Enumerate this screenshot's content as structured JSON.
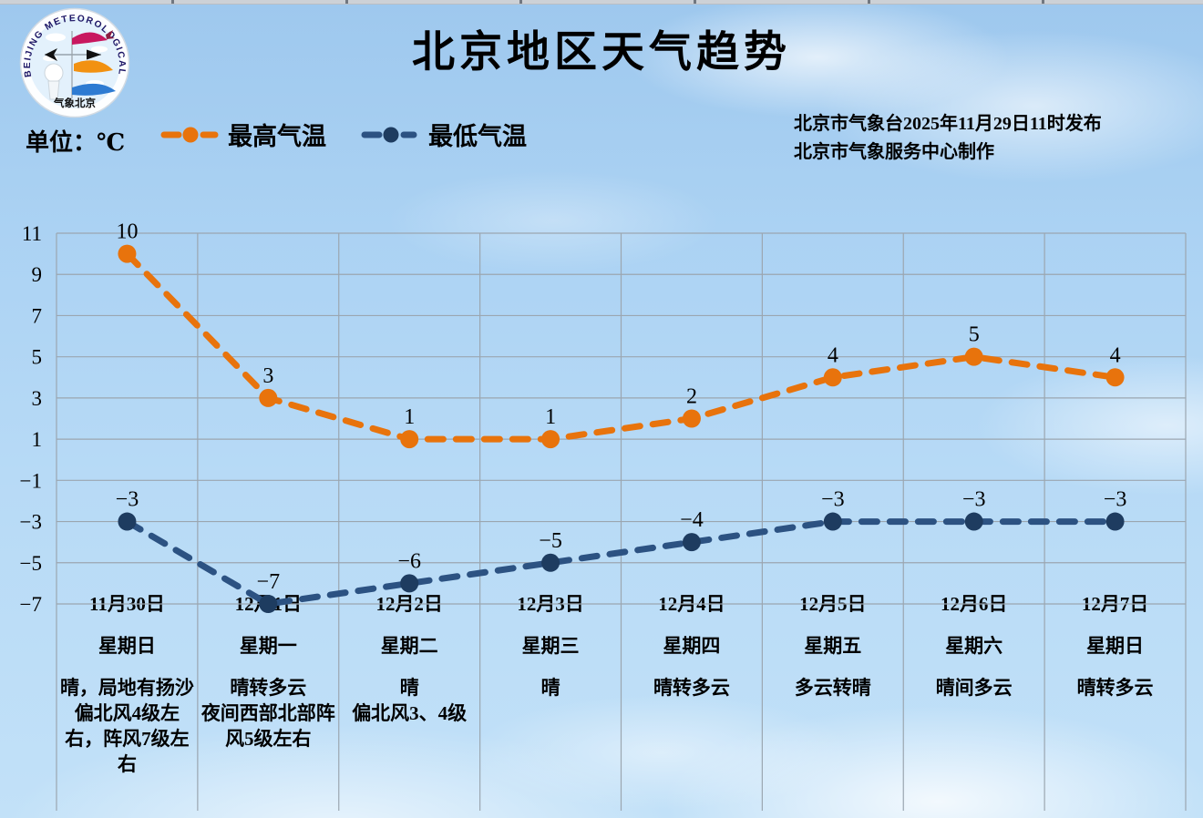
{
  "page": {
    "title": "北京地区天气趋势",
    "unit_label": "单位：℃",
    "issuer_line1": "北京市气象台2025年11月29日11时发布",
    "issuer_line2": "北京市气象服务中心制作"
  },
  "logo": {
    "ring_text": "BEIJING METEOROLOGICAL SERVICE",
    "bottom_text": "气象北京"
  },
  "legend": [
    {
      "label": "最高气温",
      "color": "#e8730c"
    },
    {
      "label": "最低气温",
      "color": "#2c5282"
    }
  ],
  "colors": {
    "grid": "#9ba6b0",
    "high_line": "#e8730c",
    "high_marker": "#e8730c",
    "low_line": "#2c5282",
    "low_marker": "#1e3c60",
    "label_text": "#000000"
  },
  "chart_data": {
    "type": "line",
    "title": "北京地区天气趋势",
    "x": [
      "11月30日",
      "12月1日",
      "12月2日",
      "12月3日",
      "12月4日",
      "12月5日",
      "12月6日",
      "12月7日"
    ],
    "series": [
      {
        "name": "最高气温",
        "values": [
          10,
          3,
          1,
          1,
          2,
          4,
          5,
          4
        ],
        "labels": [
          "10",
          "3",
          "1",
          "1",
          "2",
          "4",
          "5",
          "4"
        ],
        "color": "#e8730c",
        "marker_color": "#e8730c",
        "style": "dashed"
      },
      {
        "name": "最低气温",
        "values": [
          -3,
          -7,
          -6,
          -5,
          -4,
          -3,
          -3,
          -3
        ],
        "labels": [
          "−3",
          "−7",
          "−6",
          "−5",
          "−4",
          "−3",
          "−3",
          "−3"
        ],
        "color": "#2c5282",
        "marker_color": "#1e3c60",
        "style": "dashed"
      }
    ],
    "ylim": [
      -7,
      11
    ],
    "yticks": [
      11,
      9,
      7,
      5,
      3,
      1,
      -1,
      -3,
      -5,
      -7
    ],
    "ytick_labels": [
      "11",
      "9",
      "7",
      "5",
      "3",
      "1",
      "−1",
      "−3",
      "−5",
      "−7"
    ],
    "grid": true,
    "legend_position": "top"
  },
  "days": [
    {
      "date": "11月30日",
      "weekday": "星期日",
      "weather": "晴，局地有扬沙\n偏北风4级左右，阵风7级左右"
    },
    {
      "date": "12月1日",
      "weekday": "星期一",
      "weather": "晴转多云\n夜间西部北部阵风5级左右"
    },
    {
      "date": "12月2日",
      "weekday": "星期二",
      "weather": "晴\n偏北风3、4级"
    },
    {
      "date": "12月3日",
      "weekday": "星期三",
      "weather": "晴"
    },
    {
      "date": "12月4日",
      "weekday": "星期四",
      "weather": "晴转多云"
    },
    {
      "date": "12月5日",
      "weekday": "星期五",
      "weather": "多云转晴"
    },
    {
      "date": "12月6日",
      "weekday": "星期六",
      "weather": "晴间多云"
    },
    {
      "date": "12月7日",
      "weekday": "星期日",
      "weather": "晴转多云"
    }
  ]
}
